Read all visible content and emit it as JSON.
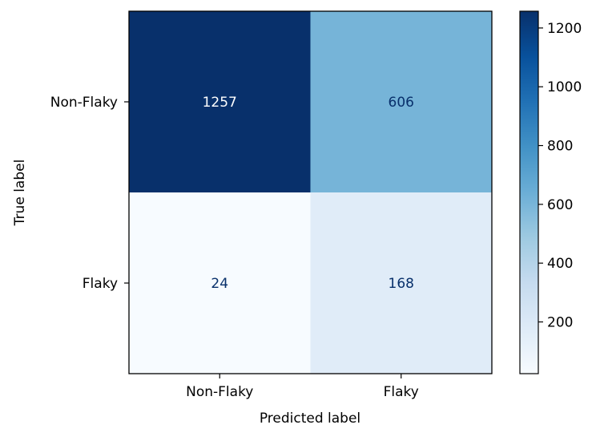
{
  "chart_data": {
    "type": "heatmap",
    "title": "",
    "xlabel": "Predicted label",
    "ylabel": "True label",
    "x_categories": [
      "Non-Flaky",
      "Flaky"
    ],
    "y_categories": [
      "Non-Flaky",
      "Flaky"
    ],
    "values": [
      [
        1257,
        606
      ],
      [
        24,
        168
      ]
    ],
    "colormap": "Blues",
    "colorbar": {
      "range": [
        24,
        1257
      ],
      "ticks": [
        200,
        400,
        600,
        800,
        1000,
        1200
      ]
    },
    "grid": false
  }
}
